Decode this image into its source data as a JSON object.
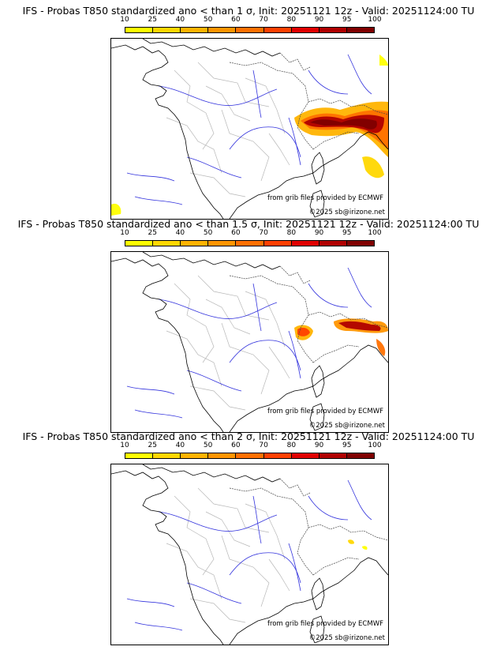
{
  "colorbar": {
    "ticks": [
      "10",
      "25",
      "40",
      "50",
      "60",
      "70",
      "80",
      "90",
      "95",
      "100"
    ],
    "colors": [
      "#ffff00",
      "#ffd700",
      "#ffb300",
      "#ff9500",
      "#ff7000",
      "#ff4000",
      "#e00000",
      "#b00000",
      "#800000"
    ]
  },
  "panels": [
    {
      "title": "IFS - Probas T850  standardized ano < than 1 σ, Init: 20251121 12z - Valid: 20251124:00 TU",
      "source": "from grib files provided by ECMWF",
      "copyright": "©2025 sb@irizone.net",
      "probability_level": "high"
    },
    {
      "title": "IFS - Probas T850  standardized ano < than 1.5 σ, Init: 20251121 12z - Valid: 20251124:00 TU",
      "source": "from grib files provided by ECMWF",
      "copyright": "©2025 sb@irizone.net",
      "probability_level": "medium"
    },
    {
      "title": "IFS - Probas T850  standardized ano < than 2 σ, Init: 20251121 12z - Valid: 20251124:00 TU",
      "source": "from grib files provided by ECMWF",
      "copyright": "©2025 sb@irizone.net",
      "probability_level": "low"
    }
  ]
}
